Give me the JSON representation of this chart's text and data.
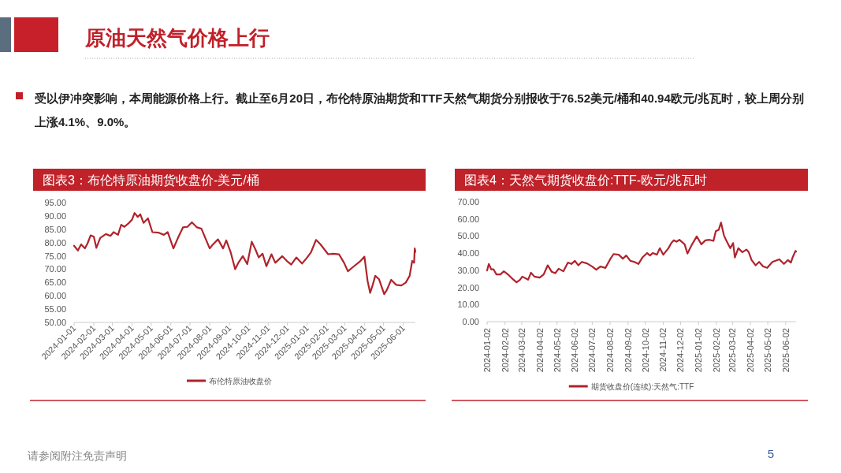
{
  "chart_data": [
    {
      "type": "line",
      "title": "图表3：布伦特原油期货收盘价-美元/桶",
      "annotations": [
        "原油天然气价格上行",
        "受以伊冲突影响，本周能源价格上行。截止至6月20日，布伦特原油期货和TTF天然气期货分别报收于76.52美元/桶和40.94欧元/兆瓦时，较上周分别上涨4.1%、9.0%。",
        "请参阅附注免责声明",
        "5"
      ],
      "x": [
        "2024-01-01",
        "2024-01-07",
        "2024-01-12",
        "2024-01-18",
        "2024-01-22",
        "2024-01-27",
        "2024-02-01",
        "2024-02-05",
        "2024-02-11",
        "2024-02-20",
        "2024-02-27",
        "2024-03-03",
        "2024-03-10",
        "2024-03-15",
        "2024-03-20",
        "2024-03-26",
        "2024-04-01",
        "2024-04-05",
        "2024-04-10",
        "2024-04-14",
        "2024-04-19",
        "2024-04-26",
        "2024-05-03",
        "2024-05-13",
        "2024-05-21",
        "2024-05-27",
        "2024-06-05",
        "2024-06-13",
        "2024-06-20",
        "2024-06-27",
        "2024-07-04",
        "2024-07-12",
        "2024-07-19",
        "2024-07-26",
        "2024-08-01",
        "2024-08-05",
        "2024-08-14",
        "2024-08-22",
        "2024-08-27",
        "2024-09-03",
        "2024-09-10",
        "2024-09-15",
        "2024-09-22",
        "2024-09-29",
        "2024-10-06",
        "2024-10-12",
        "2024-10-17",
        "2024-10-23",
        "2024-10-29",
        "2024-11-06",
        "2024-11-12",
        "2024-11-23",
        "2024-12-01",
        "2024-12-07",
        "2024-12-15",
        "2024-12-24",
        "2025-01-01",
        "2025-01-07",
        "2025-01-15",
        "2025-01-22",
        "2025-02-03",
        "2025-02-11",
        "2025-02-20",
        "2025-02-28",
        "2025-03-06",
        "2025-03-14",
        "2025-03-25",
        "2025-04-01",
        "2025-04-06",
        "2025-04-10",
        "2025-04-14",
        "2025-04-18",
        "2025-04-24",
        "2025-05-02",
        "2025-05-06",
        "2025-05-13",
        "2025-05-21",
        "2025-05-29",
        "2025-06-05",
        "2025-06-11",
        "2025-06-15",
        "2025-06-18",
        "2025-06-19",
        "2025-06-20"
      ],
      "series": [
        {
          "name": "布伦特原油收盘价",
          "color": "#b0232b",
          "values": [
            78.8,
            77.0,
            79.3,
            77.8,
            79.6,
            82.7,
            82.2,
            78.0,
            81.7,
            83.2,
            82.5,
            83.9,
            82.9,
            86.7,
            85.9,
            87.1,
            88.6,
            91.1,
            89.6,
            90.6,
            87.4,
            89.1,
            83.9,
            83.7,
            82.9,
            83.9,
            77.8,
            82.2,
            85.7,
            85.9,
            87.6,
            85.7,
            85.2,
            81.2,
            77.8,
            79.0,
            81.2,
            77.8,
            80.8,
            76.3,
            70.0,
            72.4,
            74.9,
            71.9,
            80.3,
            77.3,
            74.4,
            75.8,
            71.1,
            75.6,
            72.4,
            74.9,
            72.9,
            71.7,
            74.4,
            72.1,
            74.4,
            76.3,
            81.0,
            79.3,
            75.6,
            75.8,
            75.6,
            72.4,
            69.2,
            70.8,
            72.9,
            74.7,
            65.5,
            61.1,
            64.1,
            67.5,
            66.2,
            60.6,
            62.1,
            66.0,
            64.1,
            63.9,
            65.0,
            67.5,
            73.1,
            72.4,
            77.8,
            76.5
          ]
        }
      ],
      "xlim": [
        "2024-01-01",
        "2025-06-20"
      ],
      "xticks": [
        "2024-01-01",
        "2024-02-01",
        "2024-03-01",
        "2024-04-01",
        "2024-05-01",
        "2024-06-01",
        "2024-07-01",
        "2024-08-01",
        "2024-09-01",
        "2024-10-01",
        "2024-11-01",
        "2024-12-01",
        "2025-01-01",
        "2025-02-01",
        "2025-03-01",
        "2025-04-01",
        "2025-05-01",
        "2025-06-01"
      ],
      "ylim": [
        50,
        95
      ],
      "yticks": [
        {
          "value": 50,
          "label": "50.00"
        },
        {
          "value": 55,
          "label": "55.00"
        },
        {
          "value": 60,
          "label": "60.00"
        },
        {
          "value": 65,
          "label": "65.00"
        },
        {
          "value": 70,
          "label": "70.00"
        },
        {
          "value": 75,
          "label": "75.00"
        },
        {
          "value": 80,
          "label": "80.00"
        },
        {
          "value": 85,
          "label": "85.00"
        },
        {
          "value": 90,
          "label": "90.00"
        },
        {
          "value": 95,
          "label": "95.00"
        }
      ],
      "legend": "bottom"
    },
    {
      "type": "line",
      "title": "图表4：天然气期货收盘价:TTF-欧元/兆瓦时",
      "x": [
        "2024-01-02",
        "2024-01-05",
        "2024-01-09",
        "2024-01-13",
        "2024-01-18",
        "2024-01-25",
        "2024-01-31",
        "2024-02-07",
        "2024-02-14",
        "2024-02-22",
        "2024-02-28",
        "2024-03-03",
        "2024-03-13",
        "2024-03-18",
        "2024-03-24",
        "2024-04-02",
        "2024-04-09",
        "2024-04-16",
        "2024-04-23",
        "2024-04-29",
        "2024-05-05",
        "2024-05-13",
        "2024-05-21",
        "2024-05-27",
        "2024-06-02",
        "2024-06-08",
        "2024-06-14",
        "2024-06-23",
        "2024-07-02",
        "2024-07-09",
        "2024-07-16",
        "2024-07-25",
        "2024-08-02",
        "2024-08-08",
        "2024-08-17",
        "2024-08-24",
        "2024-08-30",
        "2024-09-06",
        "2024-09-13",
        "2024-09-20",
        "2024-09-27",
        "2024-10-05",
        "2024-10-10",
        "2024-10-15",
        "2024-10-22",
        "2024-10-27",
        "2024-11-02",
        "2024-11-11",
        "2024-11-16",
        "2024-11-20",
        "2024-11-25",
        "2024-11-30",
        "2024-12-09",
        "2024-12-14",
        "2024-12-22",
        "2024-12-30",
        "2025-01-07",
        "2025-01-14",
        "2025-01-21",
        "2025-01-28",
        "2025-02-01",
        "2025-02-06",
        "2025-02-10",
        "2025-02-15",
        "2025-02-19",
        "2025-02-26",
        "2025-03-03",
        "2025-03-06",
        "2025-03-12",
        "2025-03-19",
        "2025-03-26",
        "2025-03-30",
        "2025-04-04",
        "2025-04-11",
        "2025-04-17",
        "2025-04-24",
        "2025-05-01",
        "2025-05-10",
        "2025-05-22",
        "2025-05-30",
        "2025-06-06",
        "2025-06-11",
        "2025-06-14",
        "2025-06-19",
        "2025-06-20"
      ],
      "series": [
        {
          "name": "期货收盘价(连续):天然气:TTF",
          "color": "#b0232b",
          "values": [
            29.9,
            33.7,
            30.6,
            30.6,
            27.6,
            27.6,
            29.4,
            27.6,
            25.3,
            23.0,
            24.5,
            26.3,
            24.5,
            28.6,
            26.3,
            25.7,
            27.6,
            32.9,
            29.1,
            28.3,
            30.9,
            29.4,
            34.5,
            33.7,
            35.5,
            32.9,
            34.9,
            34.0,
            32.2,
            30.3,
            32.2,
            31.4,
            36.4,
            39.5,
            39.1,
            36.8,
            38.6,
            35.5,
            34.9,
            33.7,
            37.5,
            40.1,
            38.6,
            40.1,
            39.1,
            42.9,
            39.1,
            42.9,
            45.9,
            47.5,
            46.7,
            47.8,
            45.2,
            39.8,
            45.2,
            49.8,
            45.2,
            47.5,
            47.8,
            47.2,
            52.8,
            53.6,
            57.9,
            50.5,
            47.5,
            42.9,
            45.9,
            37.5,
            42.9,
            40.6,
            42.1,
            40.6,
            36.0,
            32.9,
            34.9,
            32.2,
            31.4,
            34.9,
            36.4,
            33.7,
            36.0,
            34.5,
            37.5,
            41.3,
            40.9
          ]
        }
      ],
      "xlim": [
        "2024-01-02",
        "2025-06-20"
      ],
      "xticks": [
        "2024-01-02",
        "2024-02-02",
        "2024-03-02",
        "2024-04-02",
        "2024-05-02",
        "2024-06-02",
        "2024-07-02",
        "2024-08-02",
        "2024-09-02",
        "2024-10-02",
        "2024-11-02",
        "2024-12-02",
        "2025-01-02",
        "2025-02-02",
        "2025-03-02",
        "2025-04-02",
        "2025-05-02",
        "2025-06-02"
      ],
      "ylim": [
        0,
        70
      ],
      "yticks": [
        {
          "value": 0,
          "label": "0.00"
        },
        {
          "value": 10,
          "label": "10.00"
        },
        {
          "value": 20,
          "label": "20.00"
        },
        {
          "value": 30,
          "label": "30.00"
        },
        {
          "value": 40,
          "label": "40.00"
        },
        {
          "value": 50,
          "label": "50.00"
        },
        {
          "value": 60,
          "label": "60.00"
        },
        {
          "value": 70,
          "label": "70.00"
        }
      ],
      "legend": "bottom"
    }
  ]
}
